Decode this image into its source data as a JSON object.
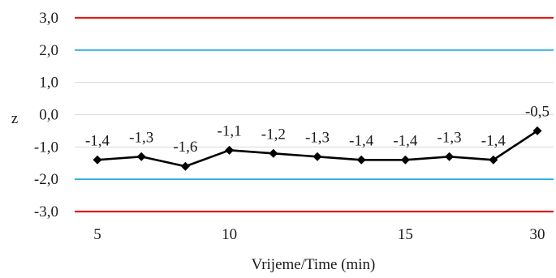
{
  "chart_data": {
    "type": "line",
    "xlabel": "Vrijeme/Time (min)",
    "ylabel": "z",
    "ylim": [
      -3.0,
      3.0
    ],
    "y_ticks": [
      "3,0",
      "2,0",
      "1,0",
      "0,0",
      "-1,0",
      "-2,0",
      "-3,0"
    ],
    "y_tick_values": [
      3,
      2,
      1,
      0,
      -1,
      -2,
      -3
    ],
    "categories": [
      "5",
      "",
      "",
      "10",
      "",
      "",
      "",
      "15",
      "",
      "",
      "30"
    ],
    "series": [
      {
        "values": [
          -1.4,
          -1.3,
          -1.6,
          -1.1,
          -1.2,
          -1.3,
          -1.4,
          -1.4,
          -1.3,
          -1.4,
          -0.5
        ],
        "labels": [
          "-1,4",
          "-1,3",
          "-1,6",
          "-1,1",
          "-1,2",
          "-1,3",
          "-1,4",
          "-1,4",
          "-1,3",
          "-1,4",
          "-0,5"
        ],
        "color": "#000000",
        "marker": "diamond"
      }
    ],
    "reference_lines": [
      {
        "value": 3.0,
        "color": "#e41a1c"
      },
      {
        "value": 2.0,
        "color": "#29abe2"
      },
      {
        "value": -2.0,
        "color": "#29abe2"
      },
      {
        "value": -3.0,
        "color": "#e41a1c"
      }
    ],
    "grid": "horizontal",
    "legend": "none"
  }
}
